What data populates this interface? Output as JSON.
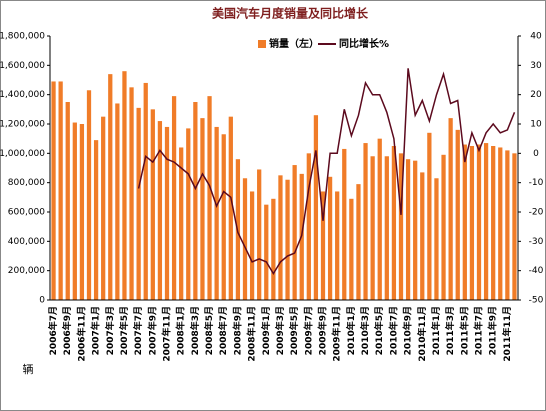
{
  "chart_data": {
    "type": "bar_line",
    "title": "美国汽车月度销量及同比增长",
    "ylabel": "辆",
    "categories": [
      "2006年7月",
      null,
      "2006年9月",
      null,
      "2006年11月",
      null,
      "2007年1月",
      null,
      "2007年3月",
      null,
      "2007年5月",
      null,
      "2007年7月",
      null,
      "2007年9月",
      null,
      "2007年11月",
      null,
      "2008年1月",
      null,
      "2008年3月",
      null,
      "2008年5月",
      null,
      "2008年7月",
      null,
      "2008年9月",
      null,
      "2008年11月",
      null,
      "2009年1月",
      null,
      "2009年3月",
      null,
      "2009年5月",
      null,
      "2009年7月",
      null,
      "2009年9月",
      null,
      "2009年11月",
      null,
      "2010年1月",
      null,
      "2010年3月",
      null,
      "2010年5月",
      null,
      "2010年7月",
      null,
      "2010年9月",
      null,
      "2010年11月",
      null,
      "2011年1月",
      null,
      "2011年3月",
      null,
      "2011年5月",
      null,
      "2011年7月",
      null,
      "2011年9月",
      null,
      "2011年11月",
      null
    ],
    "series": [
      {
        "name": "销量（左）",
        "color": "#f07c28",
        "values": [
          1490000,
          1490000,
          1350000,
          1210000,
          1200000,
          1430000,
          1090000,
          1250000,
          1540000,
          1340000,
          1560000,
          1450000,
          1310000,
          1480000,
          1300000,
          1220000,
          1180000,
          1390000,
          1040000,
          1170000,
          1350000,
          1240000,
          1390000,
          1180000,
          1130000,
          1250000,
          960000,
          830000,
          740000,
          890000,
          650000,
          690000,
          850000,
          820000,
          920000,
          860000,
          1000000,
          1260000,
          740000,
          840000,
          740000,
          1030000,
          690000,
          790000,
          1070000,
          980000,
          1100000,
          980000,
          1050000,
          1000000,
          960000,
          950000,
          870000,
          1140000,
          830000,
          990000,
          1240000,
          1160000,
          1060000,
          1050000,
          1060000,
          1070000,
          1050000,
          1040000,
          1020000,
          1000000
        ]
      },
      {
        "name": "同比增长%",
        "color": "#5c0a1e",
        "axis": "y2",
        "values": [
          null,
          null,
          null,
          null,
          null,
          null,
          null,
          null,
          null,
          null,
          null,
          null,
          -12,
          -1,
          -3,
          1,
          -2,
          -3,
          -5,
          -7,
          -12,
          -7,
          -11,
          -18,
          -13,
          -15,
          -27,
          -32,
          -37,
          -36,
          -37,
          -41,
          -37,
          -35,
          -34,
          -28,
          -12,
          1,
          -23,
          0,
          0,
          15,
          6,
          13,
          24,
          20,
          20,
          14,
          5,
          -21,
          29,
          13,
          18,
          11,
          20,
          27,
          17,
          18,
          -3,
          7,
          1,
          7,
          10,
          7,
          8,
          14
        ]
      }
    ],
    "ylim": [
      0,
      1800000
    ],
    "yticks": [
      0,
      {
        "value": 200000,
        "label": "200,000"
      },
      {
        "value": 400000,
        "label": "400,000"
      },
      {
        "value": 600000,
        "label": "600,000"
      },
      {
        "value": 800000,
        "label": "800,000"
      },
      {
        "value": 1000000,
        "label": "1,000,000"
      },
      {
        "value": 1200000,
        "label": "1,200,000"
      },
      {
        "value": 1400000,
        "label": "1,400,000"
      },
      {
        "value": 1600000,
        "label": "1,600,000"
      },
      {
        "value": 1800000,
        "label": "1,800,000"
      }
    ],
    "y2lim": [
      -50,
      40
    ],
    "y2ticks": [
      -50,
      -40,
      -30,
      -20,
      -10,
      0,
      10,
      20,
      30,
      40
    ],
    "legend": "top"
  }
}
